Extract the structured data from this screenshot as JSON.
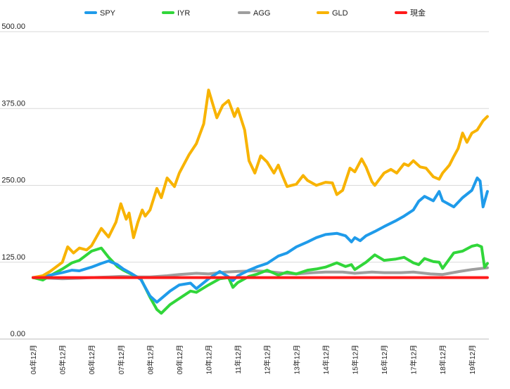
{
  "chart_data": {
    "type": "line",
    "title": "",
    "xlabel": "",
    "ylabel": "",
    "ylim": [
      0,
      500
    ],
    "y_ticks": [
      0,
      125,
      250,
      375,
      500
    ],
    "y_tick_labels": [
      "0.00",
      "125.00",
      "250.00",
      "375.00",
      "500.00"
    ],
    "x_tick_labels": [
      "04年12月",
      "05年12月",
      "06年12月",
      "07年12月",
      "08年12月",
      "09年12月",
      "10年12月",
      "11年12月",
      "12年12月",
      "13年12月",
      "14年12月",
      "15年12月",
      "16年12月",
      "17年12月",
      "18年12月",
      "19年12月"
    ],
    "x_tick_positions": [
      2004.917,
      2005.917,
      2006.917,
      2007.917,
      2008.917,
      2009.917,
      2010.917,
      2011.917,
      2012.917,
      2013.917,
      2014.917,
      2015.917,
      2016.917,
      2017.917,
      2018.917,
      2019.917
    ],
    "xlim": [
      2004.917,
      2020.5
    ],
    "grid": true,
    "legend_position": "top",
    "series": [
      {
        "name": "SPY",
        "color": "#1f9bea",
        "x": [
          2004.917,
          2005.25,
          2005.5,
          2005.917,
          2006.25,
          2006.5,
          2006.917,
          2007.25,
          2007.5,
          2007.8,
          2008.0,
          2008.3,
          2008.6,
          2008.917,
          2009.15,
          2009.3,
          2009.6,
          2009.917,
          2010.3,
          2010.5,
          2010.917,
          2011.3,
          2011.6,
          2011.75,
          2011.917,
          2012.3,
          2012.6,
          2012.917,
          2013.3,
          2013.6,
          2013.917,
          2014.3,
          2014.6,
          2014.917,
          2015.3,
          2015.6,
          2015.8,
          2015.917,
          2016.1,
          2016.3,
          2016.6,
          2016.917,
          2017.3,
          2017.6,
          2017.917,
          2018.1,
          2018.3,
          2018.6,
          2018.8,
          2018.917,
          2019.3,
          2019.6,
          2019.917,
          2020.1,
          2020.2,
          2020.3,
          2020.45
        ],
        "y": [
          100,
          101,
          104,
          108,
          112,
          111,
          117,
          123,
          127,
          121,
          114,
          106,
          97,
          70,
          60,
          66,
          78,
          88,
          91,
          82,
          98,
          110,
          101,
          95,
          103,
          112,
          118,
          123,
          135,
          140,
          150,
          158,
          165,
          170,
          172,
          168,
          158,
          165,
          160,
          168,
          175,
          183,
          192,
          200,
          210,
          224,
          232,
          225,
          240,
          225,
          215,
          230,
          242,
          262,
          257,
          215,
          240
        ]
      },
      {
        "name": "IYR",
        "color": "#31d63a",
        "x": [
          2004.917,
          2005.25,
          2005.5,
          2005.917,
          2006.25,
          2006.5,
          2006.917,
          2007.25,
          2007.5,
          2007.8,
          2008.0,
          2008.3,
          2008.6,
          2008.917,
          2009.15,
          2009.3,
          2009.6,
          2009.917,
          2010.3,
          2010.5,
          2010.917,
          2011.3,
          2011.6,
          2011.75,
          2011.917,
          2012.3,
          2012.6,
          2012.917,
          2013.3,
          2013.6,
          2013.917,
          2014.3,
          2014.6,
          2014.917,
          2015.3,
          2015.6,
          2015.8,
          2015.917,
          2016.3,
          2016.6,
          2016.917,
          2017.3,
          2017.6,
          2017.917,
          2018.1,
          2018.3,
          2018.6,
          2018.8,
          2018.917,
          2019.3,
          2019.6,
          2019.917,
          2020.1,
          2020.25,
          2020.35,
          2020.45
        ],
        "y": [
          100,
          96,
          103,
          114,
          124,
          128,
          143,
          148,
          133,
          118,
          112,
          105,
          98,
          68,
          48,
          42,
          56,
          66,
          78,
          76,
          88,
          98,
          100,
          84,
          92,
          102,
          106,
          112,
          104,
          109,
          106,
          112,
          114,
          117,
          124,
          118,
          121,
          113,
          125,
          137,
          128,
          130,
          133,
          124,
          121,
          131,
          126,
          125,
          115,
          140,
          143,
          151,
          153,
          150,
          117,
          123
        ]
      },
      {
        "name": "AGG",
        "color": "#9e9e9e",
        "x": [
          2004.917,
          2005.5,
          2005.917,
          2006.5,
          2006.917,
          2007.5,
          2007.917,
          2008.5,
          2008.917,
          2009.5,
          2009.917,
          2010.5,
          2010.917,
          2011.5,
          2011.917,
          2012.5,
          2012.917,
          2013.5,
          2013.917,
          2014.5,
          2014.917,
          2015.5,
          2015.917,
          2016.5,
          2016.917,
          2017.5,
          2017.917,
          2018.5,
          2018.917,
          2019.5,
          2019.917,
          2020.45
        ],
        "y": [
          100,
          99,
          98,
          99,
          100,
          101,
          102,
          101,
          101,
          103,
          105,
          107,
          106,
          109,
          110,
          111,
          110,
          107,
          106,
          108,
          109,
          109,
          107,
          109,
          108,
          108,
          109,
          106,
          105,
          110,
          113,
          116
        ]
      },
      {
        "name": "GLD",
        "color": "#f8b300",
        "x": [
          2004.917,
          2005.25,
          2005.5,
          2005.917,
          2006.1,
          2006.3,
          2006.5,
          2006.75,
          2006.917,
          2007.25,
          2007.5,
          2007.75,
          2007.917,
          2008.1,
          2008.2,
          2008.35,
          2008.5,
          2008.65,
          2008.75,
          2008.917,
          2009.15,
          2009.3,
          2009.5,
          2009.75,
          2009.917,
          2010.25,
          2010.5,
          2010.75,
          2010.917,
          2011.2,
          2011.4,
          2011.6,
          2011.7,
          2011.8,
          2011.917,
          2012.15,
          2012.3,
          2012.5,
          2012.7,
          2012.917,
          2013.15,
          2013.3,
          2013.45,
          2013.6,
          2013.917,
          2014.15,
          2014.3,
          2014.6,
          2014.917,
          2015.15,
          2015.3,
          2015.5,
          2015.75,
          2015.917,
          2016.15,
          2016.3,
          2016.5,
          2016.6,
          2016.917,
          2017.15,
          2017.35,
          2017.6,
          2017.75,
          2017.917,
          2018.15,
          2018.35,
          2018.6,
          2018.8,
          2018.917,
          2019.15,
          2019.3,
          2019.45,
          2019.6,
          2019.75,
          2019.917,
          2020.1,
          2020.3,
          2020.45
        ],
        "y": [
          100,
          103,
          110,
          125,
          150,
          140,
          148,
          145,
          152,
          180,
          166,
          190,
          220,
          195,
          205,
          165,
          190,
          210,
          200,
          210,
          245,
          230,
          262,
          248,
          270,
          300,
          318,
          350,
          405,
          360,
          380,
          388,
          375,
          362,
          375,
          340,
          290,
          270,
          298,
          288,
          270,
          283,
          265,
          248,
          252,
          266,
          258,
          250,
          255,
          254,
          235,
          242,
          278,
          272,
          293,
          280,
          256,
          250,
          270,
          276,
          270,
          285,
          282,
          290,
          280,
          278,
          264,
          260,
          270,
          283,
          297,
          310,
          335,
          320,
          335,
          340,
          355,
          362
        ]
      },
      {
        "name": "現金",
        "color": "#ff1a1a",
        "x": [
          2004.917,
          2020.45
        ],
        "y": [
          100,
          100
        ]
      }
    ]
  }
}
